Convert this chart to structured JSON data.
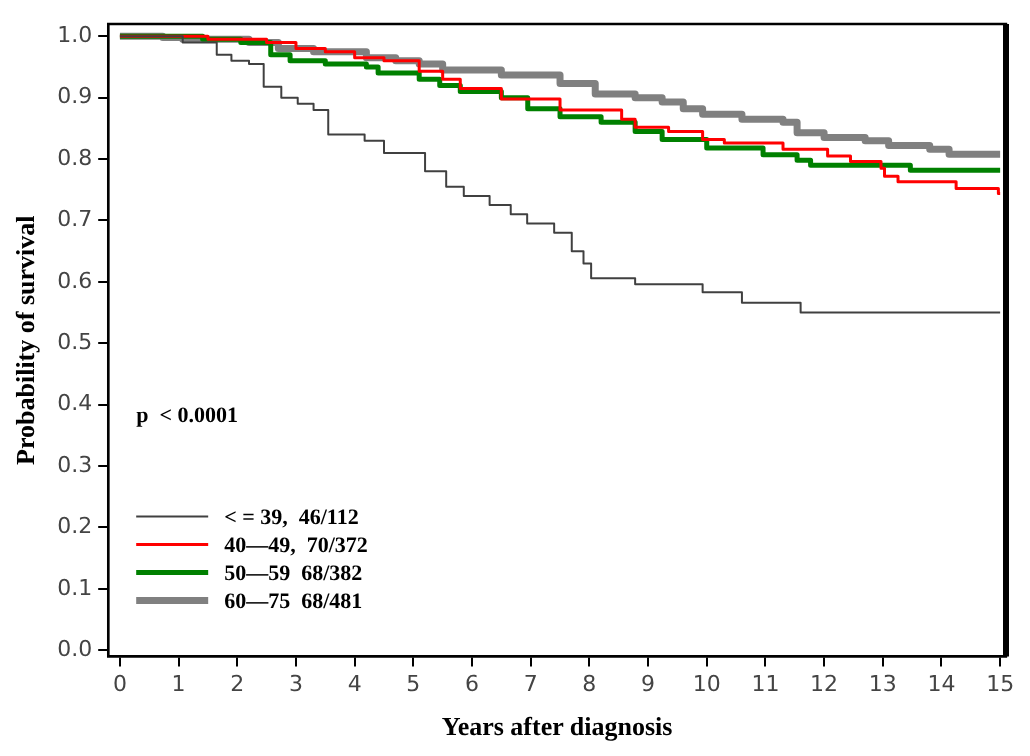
{
  "chart_data": {
    "type": "step",
    "xlabel": "Years after diagnosis",
    "ylabel": "Probability of survival",
    "annotations": [
      "p  < 0.0001"
    ],
    "xlim": [
      -0.2,
      15.1
    ],
    "ylim": [
      -0.01,
      1.02
    ],
    "xticks": [
      0,
      1,
      2,
      3,
      4,
      5,
      6,
      7,
      8,
      9,
      10,
      11,
      12,
      13,
      14,
      15
    ],
    "yticks": [
      {
        "value": 0,
        "label": "0.0"
      },
      {
        "value": 0.1,
        "label": "0.1"
      },
      {
        "value": 0.2,
        "label": "0.2"
      },
      {
        "value": 0.3,
        "label": "0.3"
      },
      {
        "value": 0.4,
        "label": "0.4"
      },
      {
        "value": 0.5,
        "label": "0.5"
      },
      {
        "value": 0.6,
        "label": "0.6"
      },
      {
        "value": 0.7,
        "label": "0.7"
      },
      {
        "value": 0.8,
        "label": "0.8"
      },
      {
        "value": 0.9,
        "label": "0.9"
      },
      {
        "value": 1,
        "label": "1.0"
      }
    ],
    "grid": false,
    "legend": "bottom left",
    "marker": "none",
    "line_style": "solid",
    "series": [
      {
        "name": "< = 39,  46/112",
        "color": "#404040",
        "x": [
          0,
          1.07,
          1.65,
          1.9,
          2.2,
          2.45,
          2.75,
          3.03,
          3.3,
          3.55,
          4.17,
          4.5,
          5.2,
          5.56,
          5.86,
          6.3,
          6.66,
          6.94,
          7.4,
          7.7,
          7.9,
          8.03,
          8.78,
          9.93,
          10.6,
          11.6,
          15
        ],
        "values": [
          1,
          0.99,
          0.97,
          0.96,
          0.955,
          0.918,
          0.9,
          0.89,
          0.88,
          0.84,
          0.83,
          0.81,
          0.78,
          0.755,
          0.74,
          0.725,
          0.71,
          0.695,
          0.68,
          0.65,
          0.63,
          0.606,
          0.596,
          0.583,
          0.566,
          0.55,
          0.55
        ]
      },
      {
        "name": "40—49,  70/372",
        "color": "#ff0000",
        "x": [
          0,
          1.5,
          2.5,
          3.0,
          3.5,
          4.0,
          4.5,
          5.1,
          5.5,
          5.8,
          6.5,
          7.5,
          8.55,
          8.78,
          9.35,
          9.93,
          10.3,
          11.3,
          12.06,
          12.45,
          12.97,
          13.03,
          13.26,
          14.25,
          14.97,
          15
        ],
        "values": [
          1,
          0.995,
          0.99,
          0.98,
          0.975,
          0.965,
          0.96,
          0.943,
          0.93,
          0.915,
          0.898,
          0.88,
          0.865,
          0.852,
          0.845,
          0.832,
          0.826,
          0.816,
          0.805,
          0.796,
          0.785,
          0.772,
          0.763,
          0.752,
          0.744,
          0.744
        ]
      },
      {
        "name": "50—59  68/382",
        "color": "#008000",
        "x": [
          0,
          1.41,
          2.06,
          2.57,
          2.9,
          3.5,
          4.2,
          4.4,
          5.1,
          5.45,
          5.8,
          6.5,
          6.95,
          7.5,
          8.2,
          8.78,
          9.24,
          10.0,
          10.96,
          11.54,
          11.77,
          13.47,
          15
        ],
        "values": [
          1,
          0.995,
          0.99,
          0.97,
          0.96,
          0.955,
          0.95,
          0.94,
          0.93,
          0.92,
          0.91,
          0.9,
          0.882,
          0.869,
          0.86,
          0.845,
          0.832,
          0.818,
          0.807,
          0.798,
          0.79,
          0.782,
          0.782
        ]
      },
      {
        "name": "60—75  68/481",
        "color": "#808080",
        "x": [
          0,
          0.73,
          1.07,
          2.2,
          2.7,
          3.3,
          4.2,
          4.7,
          5.1,
          5.5,
          6.5,
          7.5,
          8.1,
          8.78,
          9.24,
          9.6,
          9.93,
          10.6,
          11.3,
          11.54,
          12.0,
          12.7,
          13.1,
          13.8,
          14.13,
          15
        ],
        "values": [
          1,
          0.998,
          0.995,
          0.99,
          0.98,
          0.975,
          0.965,
          0.96,
          0.955,
          0.945,
          0.937,
          0.923,
          0.906,
          0.9,
          0.893,
          0.882,
          0.873,
          0.865,
          0.86,
          0.843,
          0.835,
          0.83,
          0.822,
          0.816,
          0.808,
          0.808
        ]
      }
    ]
  }
}
